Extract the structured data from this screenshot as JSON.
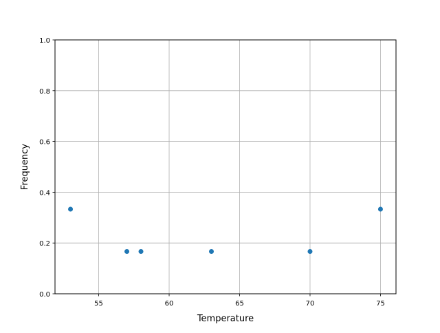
{
  "chart_data": {
    "type": "scatter",
    "title": "",
    "xlabel": "Temperature",
    "ylabel": "Frequency",
    "xlim": [
      51.9,
      76.1
    ],
    "ylim": [
      0.0,
      1.0
    ],
    "grid": true,
    "x_ticks": [
      55,
      60,
      65,
      70,
      75
    ],
    "x_tick_labels": [
      "55",
      "60",
      "65",
      "70",
      "75"
    ],
    "y_ticks": [
      0.0,
      0.2,
      0.4,
      0.6,
      0.8,
      1.0
    ],
    "y_tick_labels": [
      "0.0",
      "0.2",
      "0.4",
      "0.6",
      "0.8",
      "1.0"
    ],
    "color": "#1f77b4",
    "points": [
      {
        "x": 53,
        "y": 0.3333
      },
      {
        "x": 57,
        "y": 0.1667
      },
      {
        "x": 58,
        "y": 0.1667
      },
      {
        "x": 63,
        "y": 0.1667
      },
      {
        "x": 70,
        "y": 0.1667
      },
      {
        "x": 75,
        "y": 0.3333
      }
    ]
  }
}
